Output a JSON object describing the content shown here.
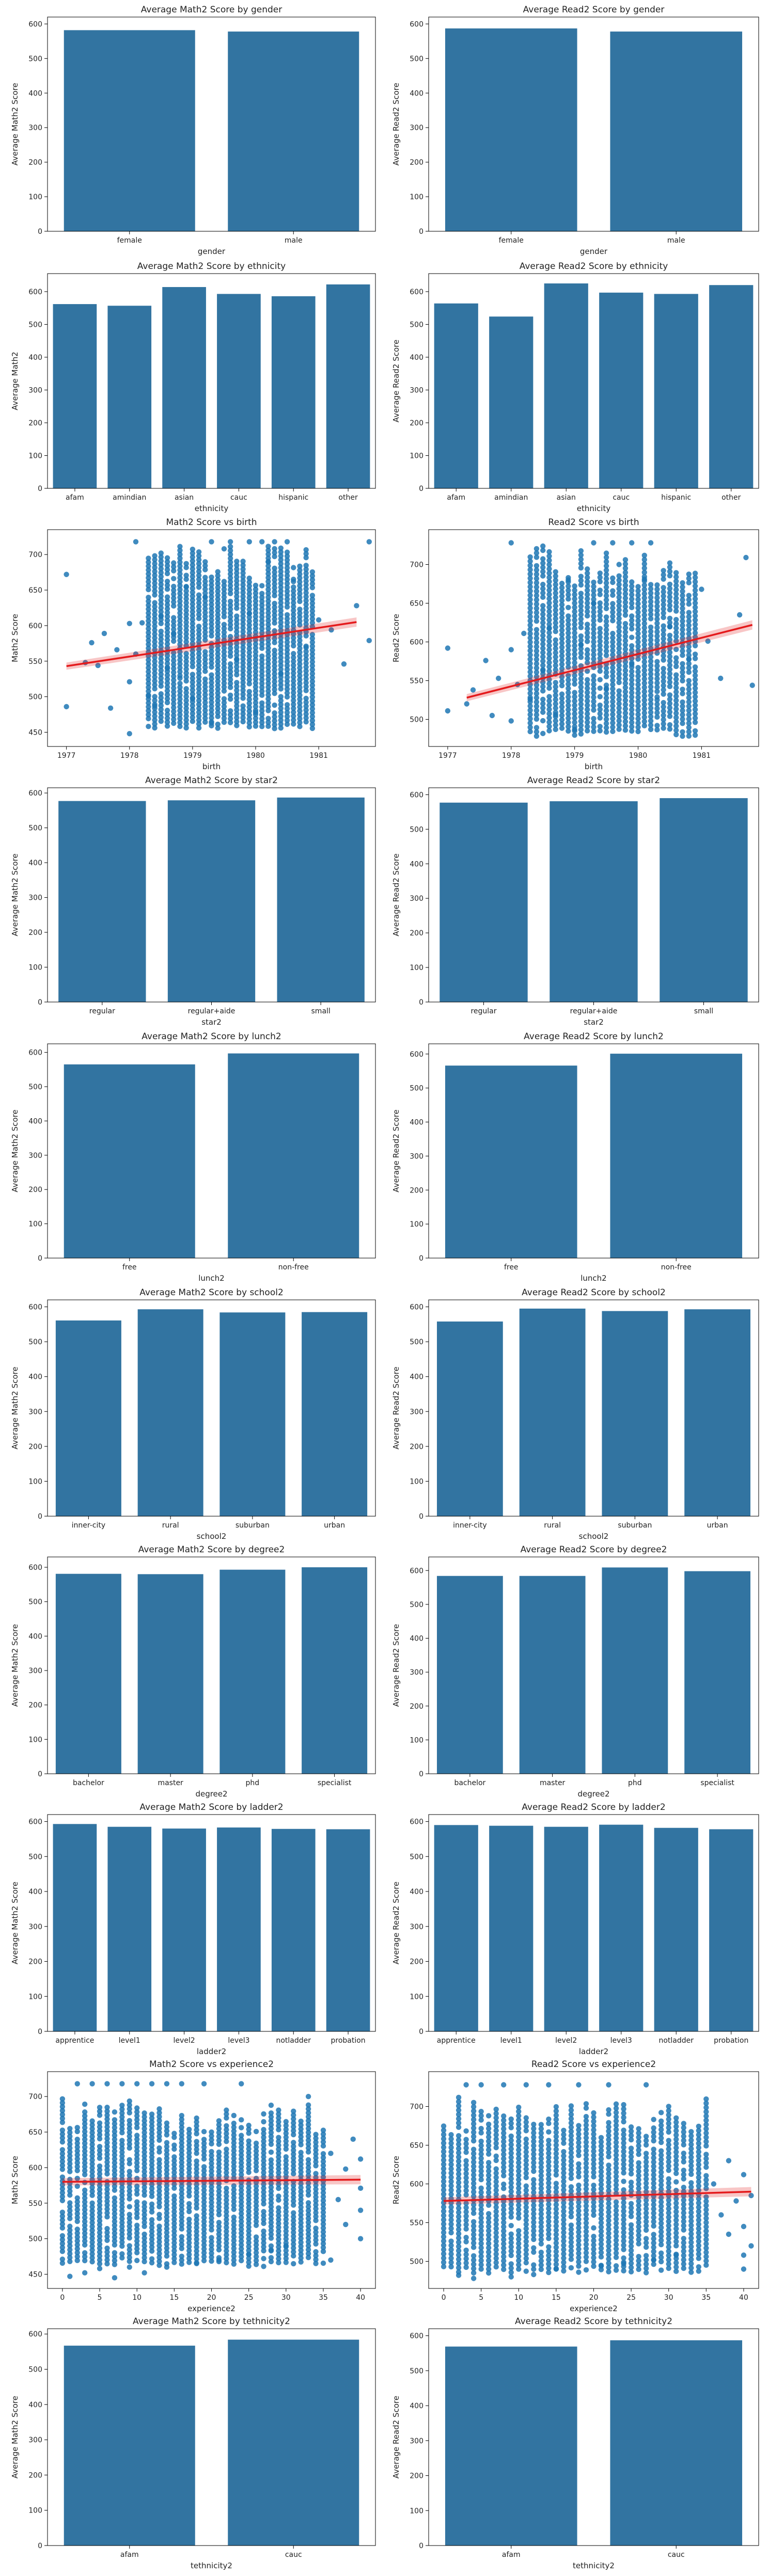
{
  "colors": {
    "bar": "#3274a1",
    "point": "#1f77b4",
    "regression": "#e41a1c",
    "axis": "#000000",
    "text": "#222222"
  },
  "chart_data": [
    {
      "type": "bar",
      "title": "Average Math2 Score by gender",
      "xlabel": "gender",
      "ylabel": "Average Math2 Score",
      "categories": [
        "female",
        "male"
      ],
      "values": [
        582,
        578
      ],
      "ylim": [
        0,
        620
      ],
      "yticks": [
        0,
        100,
        200,
        300,
        400,
        500,
        600
      ],
      "grid": false,
      "legend": "none"
    },
    {
      "type": "bar",
      "title": "Average Read2 Score by gender",
      "xlabel": "gender",
      "ylabel": "Average Read2 Score",
      "categories": [
        "female",
        "male"
      ],
      "values": [
        587,
        578
      ],
      "ylim": [
        0,
        620
      ],
      "yticks": [
        0,
        100,
        200,
        300,
        400,
        500,
        600
      ],
      "grid": false,
      "legend": "none"
    },
    {
      "type": "bar",
      "title": "Average Math2 Score by ethnicity",
      "xlabel": "ethnicity",
      "ylabel": "Average Math2",
      "categories": [
        "afam",
        "amindian",
        "asian",
        "cauc",
        "hispanic",
        "other"
      ],
      "values": [
        562,
        557,
        614,
        593,
        586,
        622
      ],
      "ylim": [
        0,
        655
      ],
      "yticks": [
        0,
        100,
        200,
        300,
        400,
        500,
        600
      ],
      "grid": false,
      "legend": "none"
    },
    {
      "type": "bar",
      "title": "Average Read2 Score by ethnicity",
      "xlabel": "ethnicity",
      "ylabel": "Average Read2 Score",
      "categories": [
        "afam",
        "amindian",
        "asian",
        "cauc",
        "hispanic",
        "other"
      ],
      "values": [
        564,
        524,
        625,
        597,
        593,
        620
      ],
      "ylim": [
        0,
        655
      ],
      "yticks": [
        0,
        100,
        200,
        300,
        400,
        500,
        600
      ],
      "grid": false,
      "legend": "none"
    },
    {
      "type": "scatter",
      "title": "Math2 Score vs birth",
      "xlabel": "birth",
      "ylabel": "Math2 Score",
      "xlim": [
        1976.7,
        1981.9
      ],
      "ylim": [
        430,
        735
      ],
      "xticks": [
        1977,
        1978,
        1979,
        1980,
        1981
      ],
      "yticks": [
        450,
        500,
        550,
        600,
        650,
        700
      ],
      "grid": false,
      "legend": "none",
      "regression": {
        "x": [
          1977.0,
          1981.6
        ],
        "y": [
          543,
          605
        ]
      },
      "points": [
        [
          1977,
          672
        ],
        [
          1977,
          486
        ],
        [
          1977.3,
          548
        ],
        [
          1977.4,
          576
        ],
        [
          1977.5,
          544
        ],
        [
          1977.6,
          589
        ],
        [
          1977.7,
          484
        ],
        [
          1977.8,
          566
        ],
        [
          1978,
          603
        ],
        [
          1978,
          521
        ],
        [
          1978,
          448
        ],
        [
          1978.1,
          560
        ],
        [
          1978.2,
          604
        ],
        [
          1978.3,
          501
        ],
        [
          1978.4,
          487
        ],
        [
          1978.5,
          613
        ],
        [
          1978.6,
          540
        ],
        [
          1978.7,
          588
        ],
        [
          1978.8,
          526
        ],
        [
          1978.9,
          655
        ],
        [
          1979,
          497
        ],
        [
          1979,
          575
        ],
        [
          1979.2,
          640
        ],
        [
          1979.3,
          463
        ],
        [
          1979.5,
          708
        ],
        [
          1979.7,
          552
        ],
        [
          1979.9,
          617
        ],
        [
          1980,
          478
        ],
        [
          1980.2,
          690
        ],
        [
          1980.4,
          532
        ],
        [
          1980.6,
          662
        ],
        [
          1980.8,
          571
        ],
        [
          1981,
          608
        ],
        [
          1981.2,
          594
        ],
        [
          1981.4,
          546
        ],
        [
          1981.6,
          628
        ],
        [
          1981.8,
          579
        ],
        [
          1978.1,
          718
        ],
        [
          1979.3,
          718
        ],
        [
          1979.6,
          718
        ],
        [
          1979.9,
          718
        ],
        [
          1980.1,
          718
        ],
        [
          1980.3,
          718
        ],
        [
          1980.5,
          718
        ],
        [
          1981.8,
          718
        ]
      ],
      "dense_band": {
        "x": [
          1978.3,
          1980.9
        ],
        "y": [
          455,
          718
        ]
      }
    },
    {
      "type": "scatter",
      "title": "Read2 Score vs birth",
      "xlabel": "birth",
      "ylabel": "Read2 Score",
      "xlim": [
        1976.7,
        1981.9
      ],
      "ylim": [
        465,
        745
      ],
      "xticks": [
        1977,
        1978,
        1979,
        1980,
        1981
      ],
      "yticks": [
        500,
        550,
        600,
        650,
        700
      ],
      "grid": false,
      "legend": "none",
      "regression": {
        "x": [
          1977.3,
          1981.8
        ],
        "y": [
          528,
          622
        ]
      },
      "points": [
        [
          1977,
          592
        ],
        [
          1977,
          511
        ],
        [
          1977.3,
          520
        ],
        [
          1977.4,
          538
        ],
        [
          1977.6,
          576
        ],
        [
          1977.7,
          505
        ],
        [
          1977.8,
          553
        ],
        [
          1978,
          728
        ],
        [
          1978,
          590
        ],
        [
          1978,
          498
        ],
        [
          1978.1,
          545
        ],
        [
          1978.2,
          611
        ],
        [
          1978.3,
          526
        ],
        [
          1978.5,
          563
        ],
        [
          1978.6,
          618
        ],
        [
          1978.7,
          506
        ],
        [
          1978.9,
          680
        ],
        [
          1979,
          487
        ],
        [
          1979.1,
          596
        ],
        [
          1979.3,
          650
        ],
        [
          1979.5,
          540
        ],
        [
          1979.7,
          700
        ],
        [
          1979.9,
          571
        ],
        [
          1980.1,
          681
        ],
        [
          1980.3,
          529
        ],
        [
          1980.5,
          620
        ],
        [
          1980.8,
          578
        ],
        [
          1981,
          668
        ],
        [
          1981.1,
          601
        ],
        [
          1981.3,
          553
        ],
        [
          1981.6,
          635
        ],
        [
          1981.7,
          709
        ],
        [
          1981.8,
          544
        ],
        [
          1979.3,
          728
        ],
        [
          1979.6,
          728
        ],
        [
          1979.9,
          728
        ],
        [
          1980.2,
          728
        ]
      ],
      "dense_band": {
        "x": [
          1978.3,
          1980.9
        ],
        "y": [
          478,
          728
        ]
      }
    },
    {
      "type": "bar",
      "title": "Average Math2 Score by star2",
      "xlabel": "star2",
      "ylabel": "Average Math2 Score",
      "categories": [
        "regular",
        "regular+aide",
        "small"
      ],
      "values": [
        577,
        579,
        587
      ],
      "ylim": [
        0,
        615
      ],
      "yticks": [
        0,
        100,
        200,
        300,
        400,
        500,
        600
      ],
      "grid": false,
      "legend": "none"
    },
    {
      "type": "bar",
      "title": "Average Read2 Score by star2",
      "xlabel": "star2",
      "ylabel": "Average Read2 Score",
      "categories": [
        "regular",
        "regular+aide",
        "small"
      ],
      "values": [
        577,
        581,
        590
      ],
      "ylim": [
        0,
        620
      ],
      "yticks": [
        0,
        100,
        200,
        300,
        400,
        500,
        600
      ],
      "grid": false,
      "legend": "none"
    },
    {
      "type": "bar",
      "title": "Average Math2 Score by lunch2",
      "xlabel": "lunch2",
      "ylabel": "Average Math2 Score",
      "categories": [
        "free",
        "non-free"
      ],
      "values": [
        565,
        597
      ],
      "ylim": [
        0,
        625
      ],
      "yticks": [
        0,
        100,
        200,
        300,
        400,
        500,
        600
      ],
      "grid": false,
      "legend": "none"
    },
    {
      "type": "bar",
      "title": "Average Read2 Score by lunch2",
      "xlabel": "lunch2",
      "ylabel": "Average Read2 Score",
      "categories": [
        "free",
        "non-free"
      ],
      "values": [
        566,
        601
      ],
      "ylim": [
        0,
        630
      ],
      "yticks": [
        0,
        100,
        200,
        300,
        400,
        500,
        600
      ],
      "grid": false,
      "legend": "none"
    },
    {
      "type": "bar",
      "title": "Average Math2 Score by school2",
      "xlabel": "school2",
      "ylabel": "Average Math2 Score",
      "categories": [
        "inner-city",
        "rural",
        "suburban",
        "urban"
      ],
      "values": [
        561,
        593,
        584,
        585
      ],
      "ylim": [
        0,
        620
      ],
      "yticks": [
        0,
        100,
        200,
        300,
        400,
        500,
        600
      ],
      "grid": false,
      "legend": "none"
    },
    {
      "type": "bar",
      "title": "Average Read2 Score by school2",
      "xlabel": "school2",
      "ylabel": "Average Read2 Score",
      "categories": [
        "inner-city",
        "rural",
        "suburban",
        "urban"
      ],
      "values": [
        558,
        595,
        588,
        593
      ],
      "ylim": [
        0,
        620
      ],
      "yticks": [
        0,
        100,
        200,
        300,
        400,
        500,
        600
      ],
      "grid": false,
      "legend": "none"
    },
    {
      "type": "bar",
      "title": "Average Math2 Score by degree2",
      "xlabel": "degree2",
      "ylabel": "Average Math2 Score",
      "categories": [
        "bachelor",
        "master",
        "phd",
        "specialist"
      ],
      "values": [
        581,
        580,
        593,
        600
      ],
      "ylim": [
        0,
        630
      ],
      "yticks": [
        0,
        100,
        200,
        300,
        400,
        500,
        600
      ],
      "grid": false,
      "legend": "none"
    },
    {
      "type": "bar",
      "title": "Average Read2 Score by degree2",
      "xlabel": "degree2",
      "ylabel": "Average Read2 Score",
      "categories": [
        "bachelor",
        "master",
        "phd",
        "specialist"
      ],
      "values": [
        584,
        584,
        609,
        598
      ],
      "ylim": [
        0,
        640
      ],
      "yticks": [
        0,
        100,
        200,
        300,
        400,
        500,
        600
      ],
      "grid": false,
      "legend": "none"
    },
    {
      "type": "bar",
      "title": "Average Math2 Score by ladder2",
      "xlabel": "ladder2",
      "ylabel": "Average Math2 Score",
      "categories": [
        "apprentice",
        "level1",
        "level2",
        "level3",
        "notladder",
        "probation"
      ],
      "values": [
        593,
        585,
        580,
        583,
        579,
        578
      ],
      "ylim": [
        0,
        620
      ],
      "yticks": [
        0,
        100,
        200,
        300,
        400,
        500,
        600
      ],
      "grid": false,
      "legend": "none"
    },
    {
      "type": "bar",
      "title": "Average Read2 Score by ladder2",
      "xlabel": "ladder2",
      "ylabel": "Average Read2 Score",
      "categories": [
        "apprentice",
        "level1",
        "level2",
        "level3",
        "notladder",
        "probation"
      ],
      "values": [
        590,
        588,
        585,
        591,
        582,
        578
      ],
      "ylim": [
        0,
        620
      ],
      "yticks": [
        0,
        100,
        200,
        300,
        400,
        500,
        600
      ],
      "grid": false,
      "legend": "none"
    },
    {
      "type": "scatter",
      "title": "Math2 Score vs experience2",
      "xlabel": "experience2",
      "ylabel": "Math2 Score",
      "xlim": [
        -2,
        42
      ],
      "ylim": [
        430,
        735
      ],
      "xticks": [
        0,
        5,
        10,
        15,
        20,
        25,
        30,
        35,
        40
      ],
      "yticks": [
        450,
        500,
        550,
        600,
        650,
        700
      ],
      "grid": false,
      "legend": "none",
      "regression": {
        "x": [
          0,
          40
        ],
        "y": [
          580,
          583
        ]
      },
      "points": [
        [
          36,
          620
        ],
        [
          37,
          555
        ],
        [
          38,
          598
        ],
        [
          38,
          520
        ],
        [
          39,
          640
        ],
        [
          40,
          500
        ],
        [
          40,
          571
        ],
        [
          40,
          612
        ],
        [
          40,
          540
        ],
        [
          36,
          470
        ],
        [
          33,
          700
        ],
        [
          1,
          447
        ],
        [
          3,
          452
        ],
        [
          5,
          458
        ],
        [
          7,
          445
        ],
        [
          9,
          460
        ],
        [
          11,
          452
        ],
        [
          14,
          460
        ],
        [
          18,
          465
        ],
        [
          21,
          470
        ],
        [
          25,
          478
        ],
        [
          28,
          483
        ],
        [
          30,
          490
        ],
        [
          2,
          718
        ],
        [
          4,
          718
        ],
        [
          6,
          718
        ],
        [
          8,
          718
        ],
        [
          10,
          718
        ],
        [
          12,
          718
        ],
        [
          14,
          718
        ],
        [
          16,
          718
        ],
        [
          19,
          718
        ],
        [
          24,
          718
        ]
      ],
      "dense_band": {
        "x": [
          0,
          35
        ],
        "y": [
          460,
          700
        ]
      }
    },
    {
      "type": "scatter",
      "title": "Read2 Score vs experience2",
      "xlabel": "experience2",
      "ylabel": "Read2 Score",
      "xlim": [
        -2,
        42
      ],
      "ylim": [
        465,
        745
      ],
      "xticks": [
        0,
        5,
        10,
        15,
        20,
        25,
        30,
        35,
        40
      ],
      "yticks": [
        500,
        550,
        600,
        650,
        700
      ],
      "grid": false,
      "legend": "none",
      "regression": {
        "x": [
          0,
          41
        ],
        "y": [
          578,
          590
        ]
      },
      "points": [
        [
          36,
          600
        ],
        [
          37,
          560
        ],
        [
          38,
          630
        ],
        [
          38,
          535
        ],
        [
          39,
          578
        ],
        [
          40,
          508
        ],
        [
          40,
          545
        ],
        [
          40,
          612
        ],
        [
          41,
          520
        ],
        [
          41,
          585
        ],
        [
          40,
          490
        ],
        [
          2,
          482
        ],
        [
          4,
          478
        ],
        [
          6,
          485
        ],
        [
          9,
          480
        ],
        [
          12,
          483
        ],
        [
          15,
          490
        ],
        [
          18,
          486
        ],
        [
          21,
          494
        ],
        [
          24,
          497
        ],
        [
          28,
          502
        ],
        [
          31,
          508
        ],
        [
          3,
          728
        ],
        [
          5,
          728
        ],
        [
          8,
          728
        ],
        [
          11,
          728
        ],
        [
          14,
          728
        ],
        [
          18,
          728
        ],
        [
          22,
          728
        ],
        [
          27,
          728
        ]
      ],
      "dense_band": {
        "x": [
          0,
          35
        ],
        "y": [
          485,
          715
        ]
      }
    },
    {
      "type": "bar",
      "title": "Average Math2 Score by tethnicity2",
      "xlabel": "tethnicity2",
      "ylabel": "Average Math2 Score",
      "categories": [
        "afam",
        "cauc"
      ],
      "values": [
        567,
        584
      ],
      "ylim": [
        0,
        615
      ],
      "yticks": [
        0,
        100,
        200,
        300,
        400,
        500,
        600
      ],
      "grid": false,
      "legend": "none"
    },
    {
      "type": "bar",
      "title": "Average Read2 Score by tethnicity2",
      "xlabel": "tethnicity2",
      "ylabel": "Average Read2 Score",
      "categories": [
        "afam",
        "cauc"
      ],
      "values": [
        569,
        587
      ],
      "ylim": [
        0,
        620
      ],
      "yticks": [
        0,
        100,
        200,
        300,
        400,
        500,
        600
      ],
      "grid": false,
      "legend": "none"
    }
  ]
}
